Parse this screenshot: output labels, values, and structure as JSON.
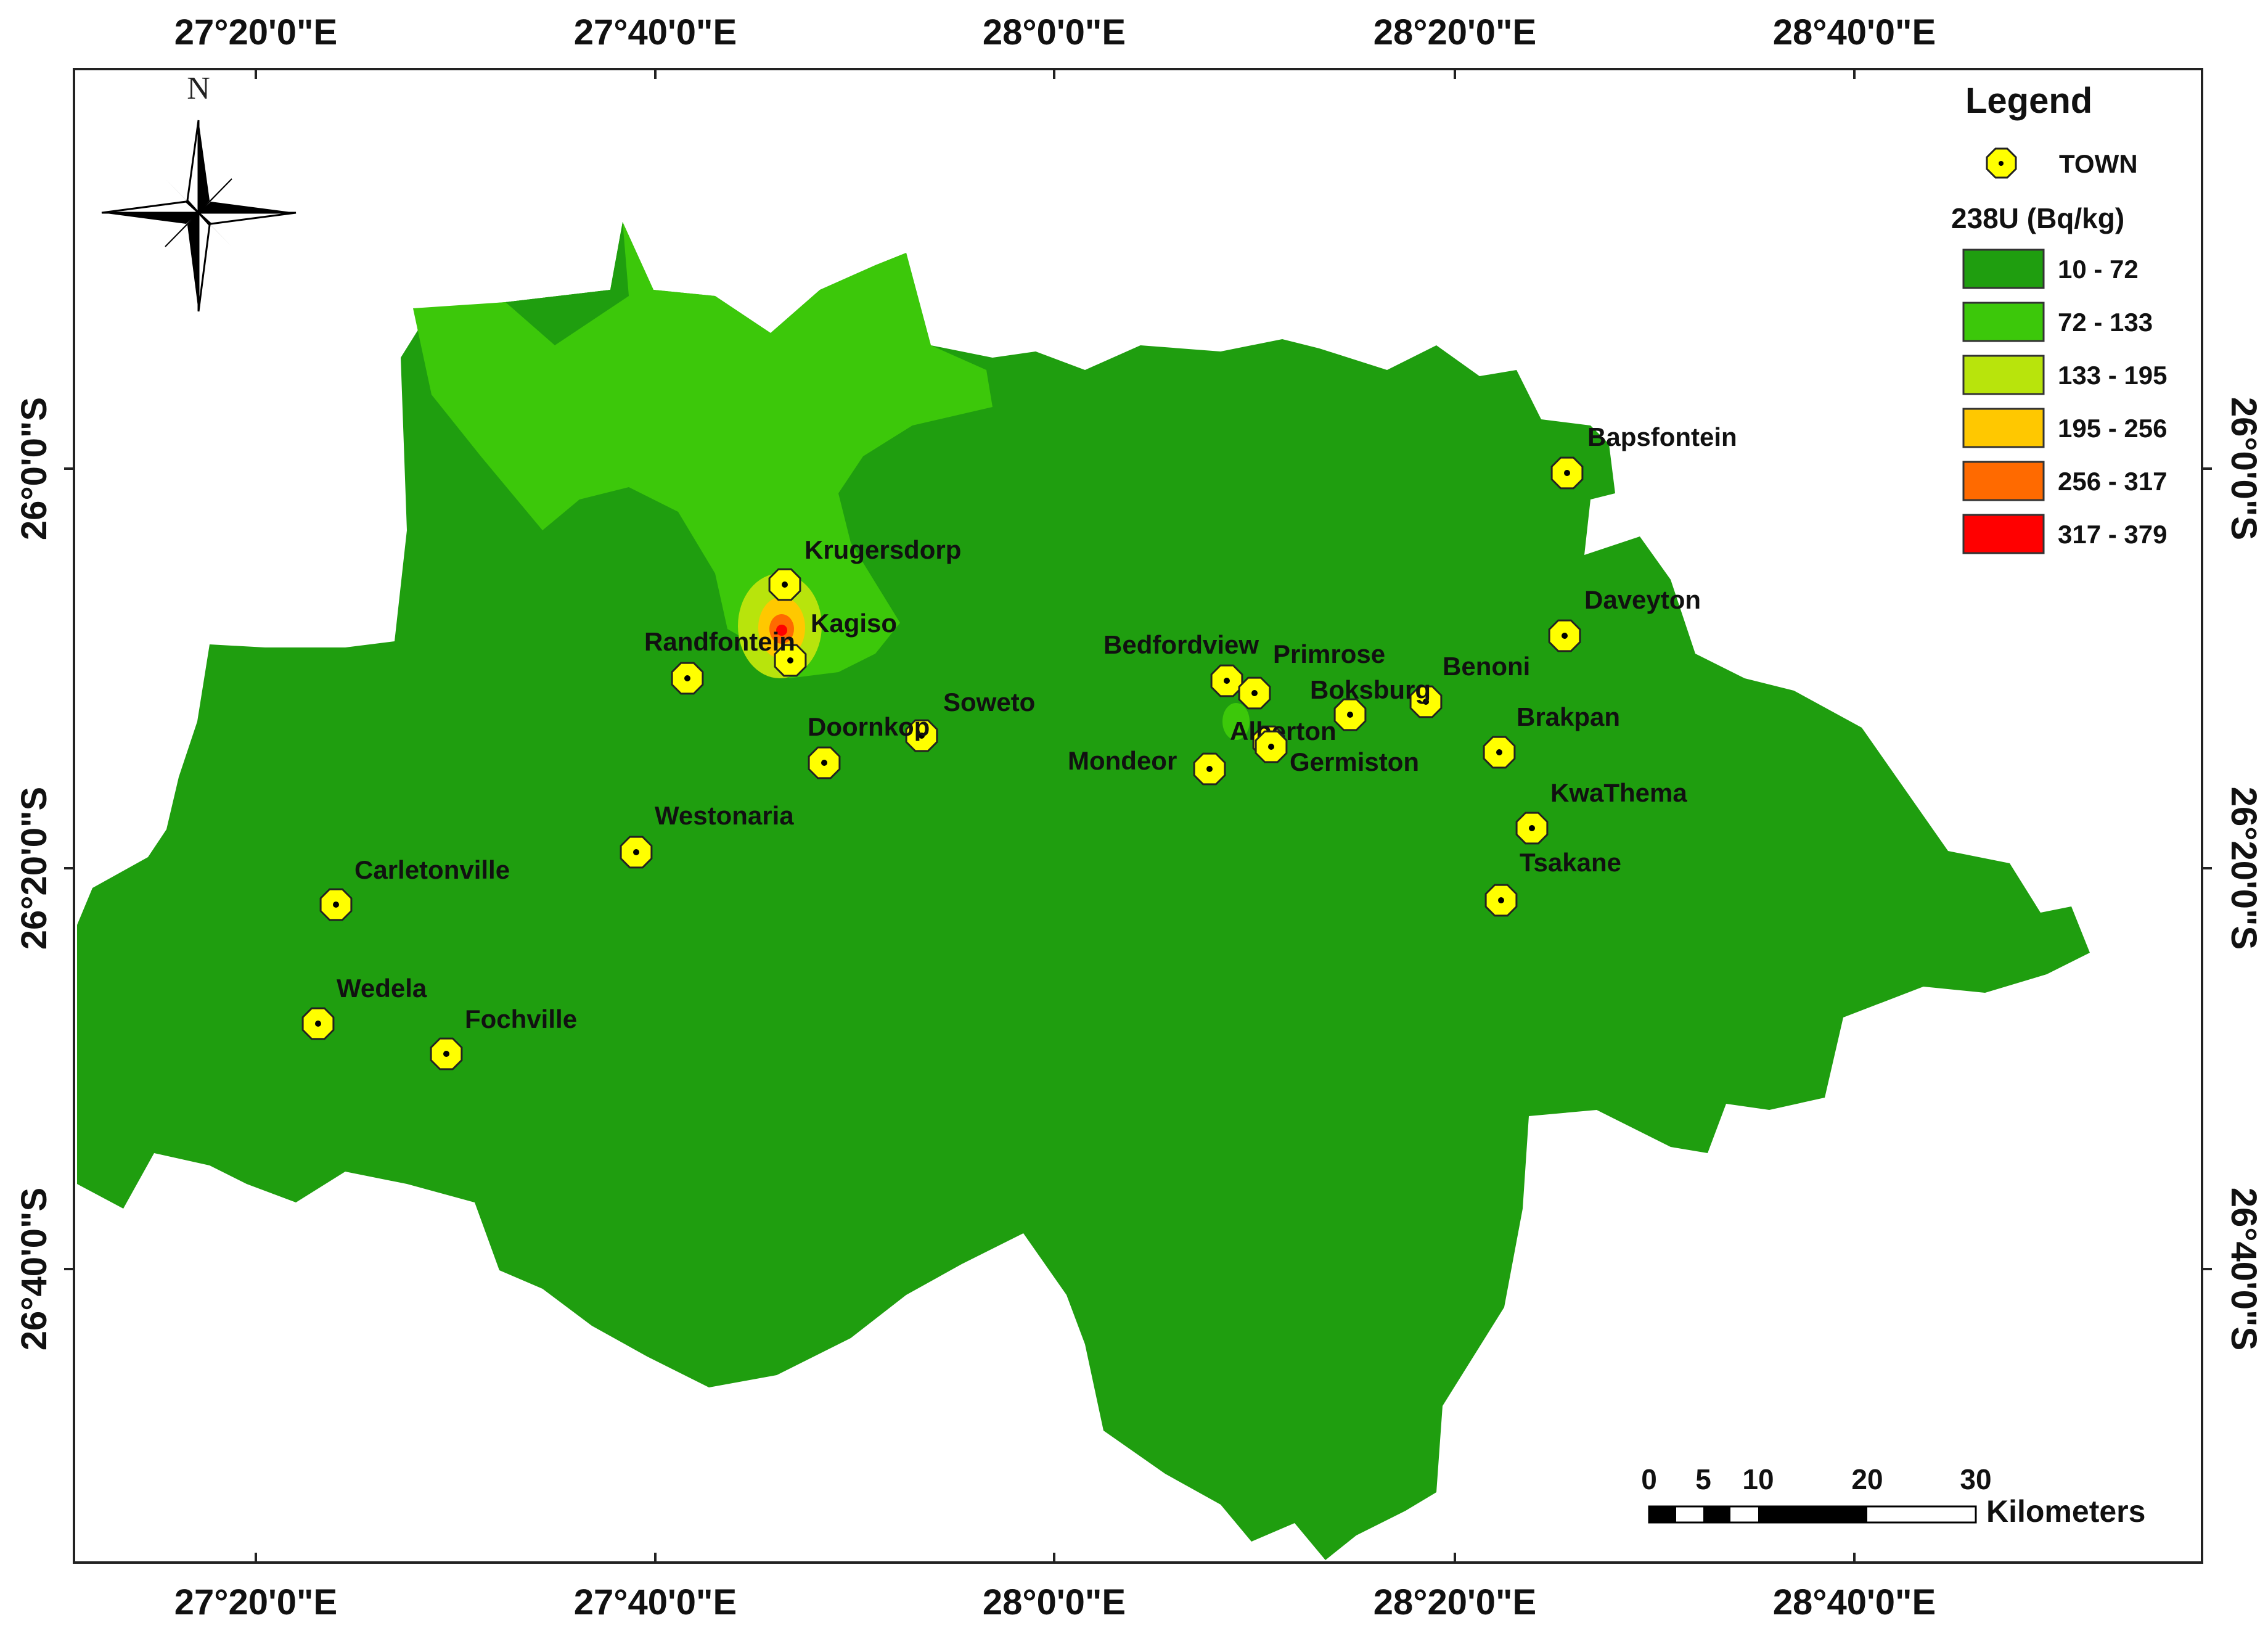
{
  "colors": {
    "class_10_72": "#1f9e0f",
    "class_72_133": "#3cc80a",
    "class_133_195": "#b8e40c",
    "class_195_256": "#ffc800",
    "class_256_317": "#ff6a00",
    "class_317_379": "#ff0000",
    "town_fill": "#ffff00",
    "frame": "#222222"
  },
  "top_ticks": [
    "27°20'0\"E",
    "27°40'0\"E",
    "28°0'0\"E",
    "28°20'0\"E",
    "28°40'0\"E"
  ],
  "bottom_ticks": [
    "27°20'0\"E",
    "27°40'0\"E",
    "28°0'0\"E",
    "28°20'0\"E",
    "28°40'0\"E"
  ],
  "left_ticks": [
    "26°0'0\"S",
    "26°20'0\"S",
    "26°40'0\"S"
  ],
  "right_ticks": [
    "26°0'0\"S",
    "26°20'0\"S",
    "26°40'0\"S"
  ],
  "north_arrow": {
    "label": "N"
  },
  "legend": {
    "title": "Legend",
    "town_label": "TOWN",
    "raster_title": "238U (Bq/kg)",
    "classes": [
      {
        "label": "10 - 72",
        "color": "#1f9e0f"
      },
      {
        "label": "72 - 133",
        "color": "#3cc80a"
      },
      {
        "label": "133 - 195",
        "color": "#b8e40c"
      },
      {
        "label": "195 - 256",
        "color": "#ffc800"
      },
      {
        "label": "256 - 317",
        "color": "#ff6a00"
      },
      {
        "label": "317 - 379",
        "color": "#ff0000"
      }
    ]
  },
  "scale_bar": {
    "ticks": [
      "0",
      "5",
      "10",
      "20",
      "30"
    ],
    "unit": "Kilometers"
  },
  "towns": [
    "Bapsfontein",
    "Krugersdorp",
    "Kagiso",
    "Randfontein",
    "Daveyton",
    "Bedfordview",
    "Primrose",
    "Benoni",
    "Boksburg",
    "Soweto",
    "Doornkop",
    "Brakpan",
    "Alberton",
    "Mondeor",
    "Germiston",
    "KwaThema",
    "Westonaria",
    "Tsakane",
    "Carletonville",
    "Wedela",
    "Fochville"
  ]
}
